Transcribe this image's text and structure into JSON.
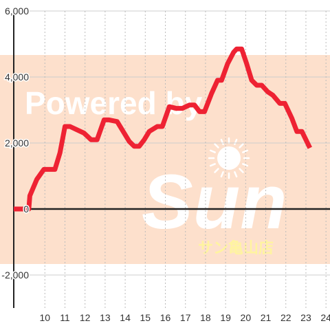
{
  "chart_data": {
    "type": "line",
    "title": "",
    "xlabel": "",
    "ylabel": "",
    "xlim": [
      8.45,
      24.2
    ],
    "ylim": [
      -3000,
      6000
    ],
    "x_ticks": [
      10,
      11,
      12,
      13,
      14,
      15,
      16,
      17,
      18,
      19,
      20,
      21,
      22,
      23,
      24
    ],
    "y_ticks": [
      -2000,
      0,
      2000,
      4000,
      6000
    ],
    "x_tick_labels": [
      "10",
      "11",
      "12",
      "13",
      "14",
      "15",
      "16",
      "17",
      "18",
      "19",
      "20",
      "21",
      "22",
      "23",
      "24"
    ],
    "y_tick_labels": [
      "-2,000",
      "0",
      "2,000",
      "4,000",
      "6,000"
    ],
    "grid": true,
    "line_color": "#ee2233",
    "series": [
      {
        "x": [
          8.45,
          9.2,
          9.25,
          9.6,
          9.95,
          10.5,
          10.75,
          11.0,
          11.25,
          11.6,
          11.95,
          12.3,
          12.6,
          12.95,
          13.2,
          13.6,
          13.95,
          14.2,
          14.45,
          14.7,
          14.95,
          15.2,
          15.6,
          15.85,
          16.2,
          16.55,
          16.85,
          17.2,
          17.45,
          17.7,
          17.95,
          18.3,
          18.6,
          18.8,
          19.1,
          19.4,
          19.55,
          19.8,
          20.05,
          20.3,
          20.55,
          20.8,
          21.1,
          21.35,
          21.7,
          21.95,
          22.3,
          22.55,
          22.8,
          23.2
        ],
        "y": [
          0,
          0,
          400,
          900,
          1200,
          1200,
          1700,
          2500,
          2500,
          2400,
          2300,
          2100,
          2100,
          2700,
          2700,
          2650,
          2300,
          2050,
          1900,
          1900,
          2100,
          2350,
          2500,
          2500,
          3100,
          3050,
          3050,
          3150,
          3150,
          2950,
          2950,
          3500,
          3900,
          3900,
          4400,
          4750,
          4850,
          4850,
          4400,
          3900,
          3750,
          3750,
          3550,
          3450,
          3200,
          3200,
          2750,
          2350,
          2350,
          1850
        ]
      }
    ]
  },
  "watermark": {
    "headline": "Powered by",
    "brand": "Sun",
    "store": "サン亀山店",
    "band_color": "#fde0cc",
    "text_color": "#ffffff",
    "store_color": "#fff4a0"
  }
}
